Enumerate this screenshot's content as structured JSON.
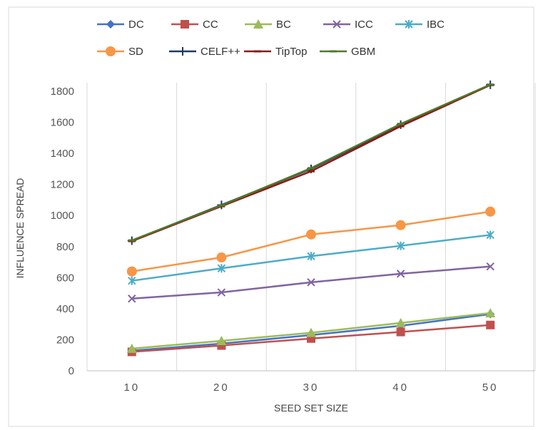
{
  "chart_data": {
    "type": "line",
    "xlabel": "SEED SET SIZE",
    "ylabel": "INFLUENCE SPREAD",
    "categories": [
      "10",
      "20",
      "30",
      "40",
      "50"
    ],
    "ylim": [
      0,
      1800
    ],
    "yticks": [
      0,
      200,
      400,
      600,
      800,
      1000,
      1200,
      1400,
      1600,
      1800
    ],
    "grid": "vertical",
    "legend_position": "top",
    "series": [
      {
        "name": "DC",
        "color": "#4472C4",
        "marker": "diamond",
        "values": [
          130,
          175,
          230,
          290,
          365
        ]
      },
      {
        "name": "CC",
        "color": "#C0504D",
        "marker": "square",
        "values": [
          122,
          163,
          208,
          250,
          295
        ]
      },
      {
        "name": "BC",
        "color": "#9BBB59",
        "marker": "triangle",
        "values": [
          143,
          193,
          245,
          308,
          372
        ]
      },
      {
        "name": "ICC",
        "color": "#8064A2",
        "marker": "x",
        "values": [
          465,
          505,
          570,
          625,
          672
        ]
      },
      {
        "name": "IBC",
        "color": "#4BACC6",
        "marker": "star",
        "values": [
          580,
          660,
          738,
          805,
          875
        ]
      },
      {
        "name": "SD",
        "color": "#F79646",
        "marker": "circle",
        "values": [
          640,
          730,
          878,
          938,
          1025
        ]
      },
      {
        "name": "CELF++",
        "color": "#1F3864",
        "marker": "plus",
        "values": [
          838,
          1068,
          1300,
          1585,
          1842
        ]
      },
      {
        "name": "TipTop",
        "color": "#8B1A1A",
        "marker": "dash",
        "values": [
          835,
          1060,
          1285,
          1575,
          1840
        ]
      },
      {
        "name": "GBM",
        "color": "#4F7A28",
        "marker": "dash",
        "values": [
          840,
          1065,
          1305,
          1590,
          1843
        ]
      }
    ]
  }
}
